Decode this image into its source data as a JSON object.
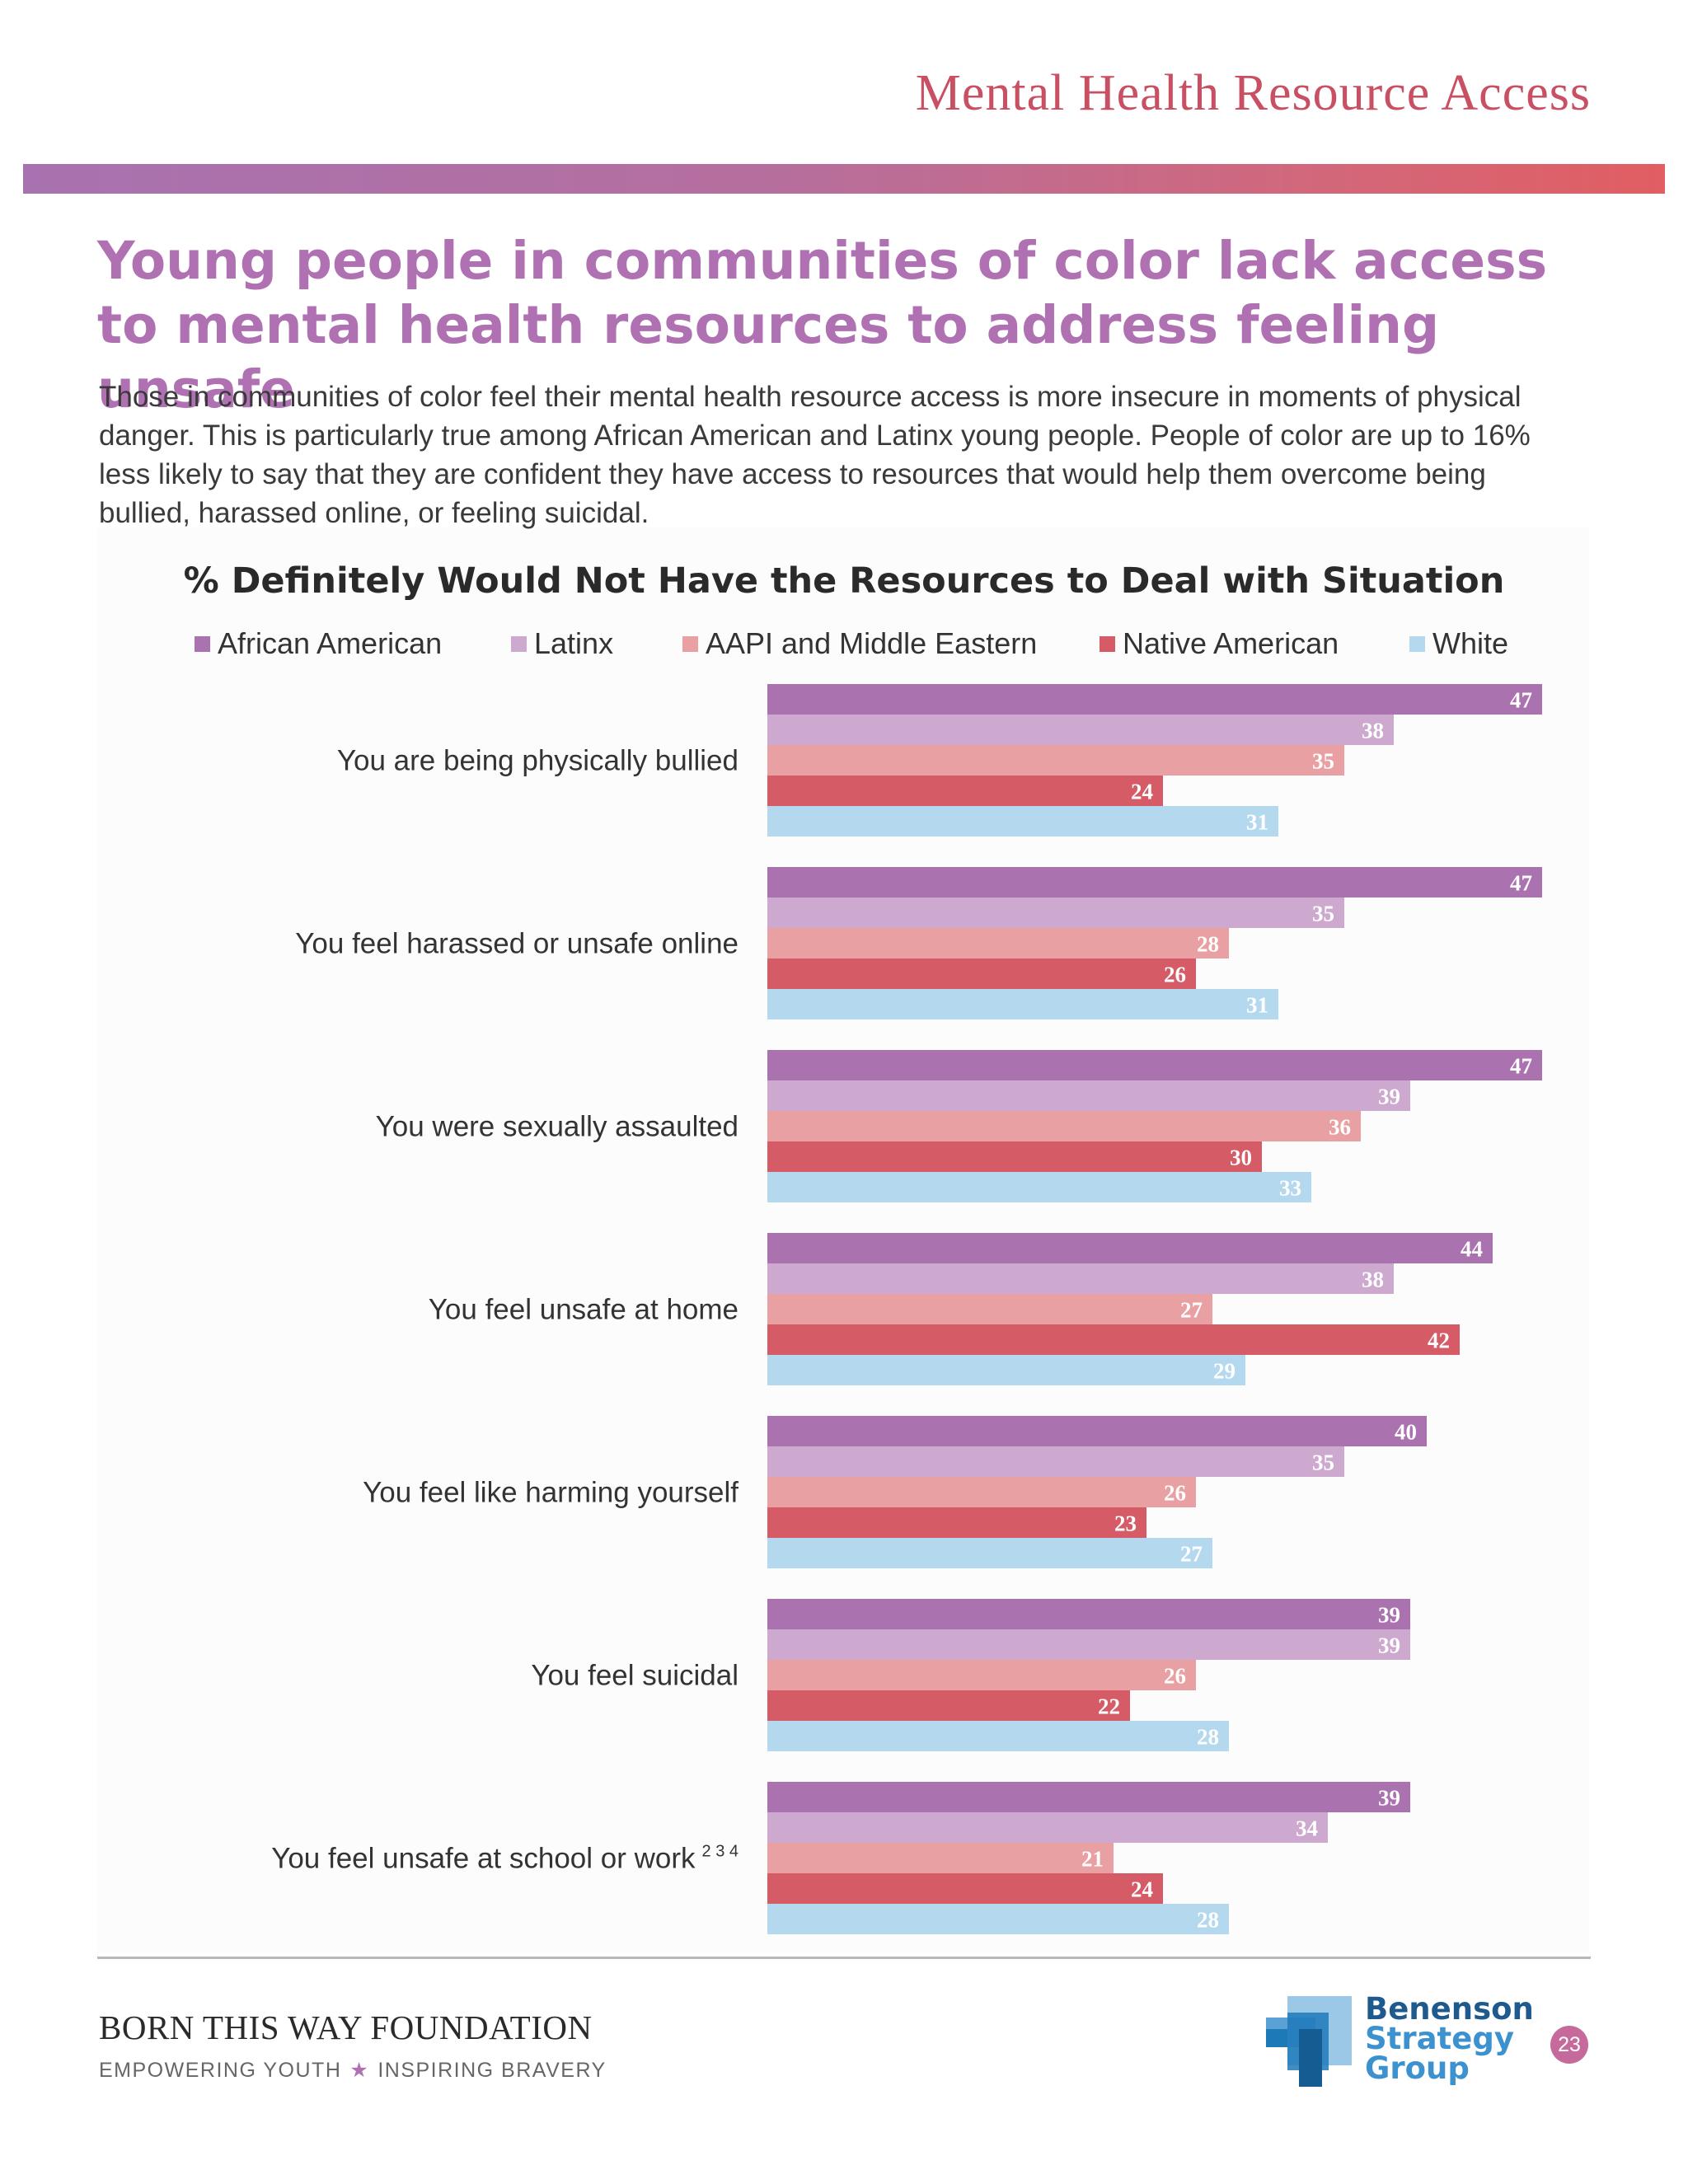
{
  "header": {
    "section_title": "Mental Health Resource Access"
  },
  "headline": "Young people in communities of color lack access to mental health resources to address feeling unsafe",
  "intro": "Those in communities of color feel their mental health resource access is more insecure in moments of physical danger. This is particularly true among African American and Latinx young people. People of color are up to 16% less likely to say that they are confident they have access to resources that would help them overcome being bullied, harassed online, or feeling suicidal.",
  "chart_data": {
    "type": "bar",
    "orientation": "horizontal",
    "title": "% Definitely Would Not Have the Resources to Deal with Situation",
    "legend_position": "top",
    "categories": [
      "You are being physically bullied",
      "You feel harassed or unsafe online",
      "You were sexually assaulted",
      "You feel unsafe at home",
      "You feel like harming yourself",
      "You feel suicidal",
      "You feel unsafe at school or work"
    ],
    "category_superscripts": [
      "",
      "",
      "",
      "",
      "",
      "",
      "2 3 4"
    ],
    "series": [
      {
        "name": "African American",
        "color": "#ab72b0",
        "label_color": "#ffffff",
        "values": [
          47,
          47,
          47,
          44,
          40,
          39,
          39
        ]
      },
      {
        "name": "Latinx",
        "color": "#cda9d0",
        "label_color": "#ffffff",
        "values": [
          38,
          35,
          39,
          38,
          35,
          39,
          34
        ]
      },
      {
        "name": "AAPI and Middle Eastern",
        "color": "#e8a0a3",
        "label_color": "#ffffff",
        "values": [
          35,
          28,
          36,
          27,
          26,
          26,
          21
        ]
      },
      {
        "name": "Native American",
        "color": "#d55c66",
        "label_color": "#ffffff",
        "values": [
          24,
          26,
          30,
          42,
          23,
          22,
          24
        ]
      },
      {
        "name": "White",
        "color": "#b4d9ef",
        "label_color": "#ffffff",
        "values": [
          31,
          31,
          33,
          29,
          27,
          28,
          28
        ]
      }
    ],
    "xlim": [
      0,
      47
    ]
  },
  "footer": {
    "org_name": "BORN THIS WAY FOUNDATION",
    "tagline_left": "EMPOWERING YOUTH",
    "tagline_star": "★",
    "tagline_right": "INSPIRING BRAVERY",
    "partner_line1": "Benenson",
    "partner_line2": "Strategy",
    "partner_line3": "Group",
    "partner_color": "#1e79b8",
    "page_number": "23"
  }
}
